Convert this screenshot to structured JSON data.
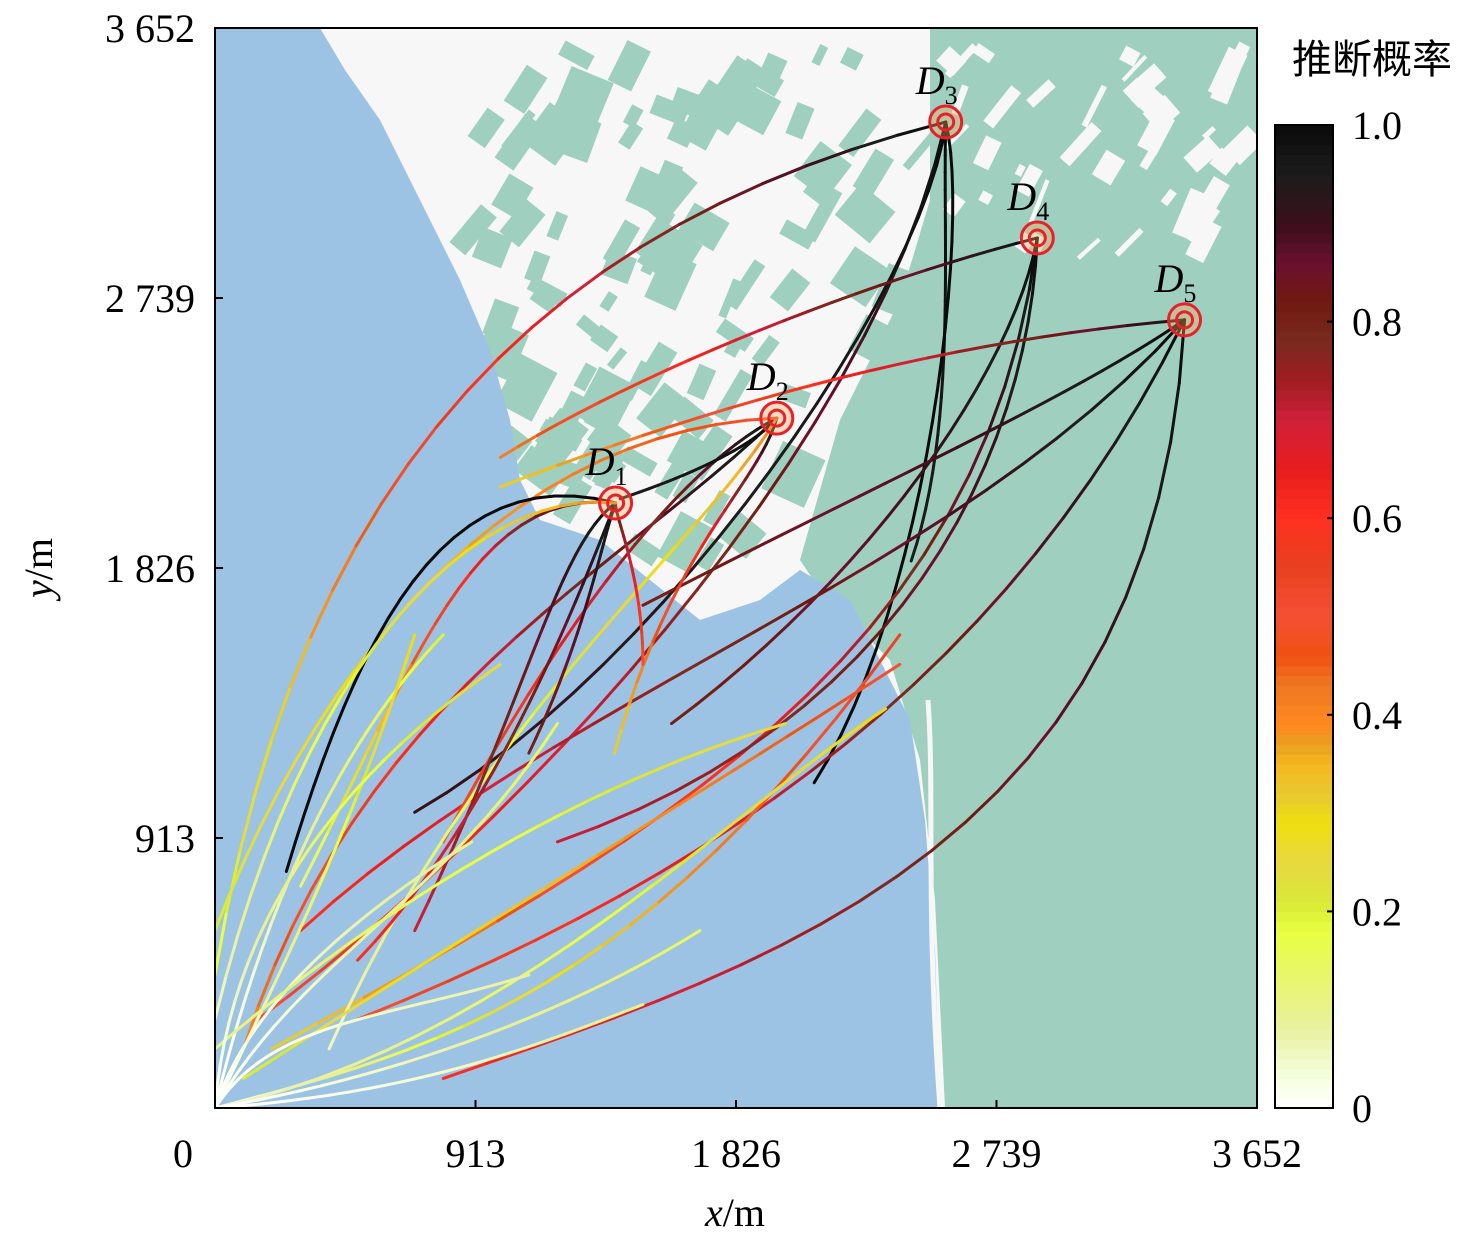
{
  "chart_data": {
    "type": "line",
    "xlabel": "x/m",
    "ylabel": "y/m",
    "xlim": [
      0,
      3652
    ],
    "ylim": [
      0,
      3652
    ],
    "xticks": [
      "0",
      "913",
      "1 826",
      "2 739",
      "3 652"
    ],
    "yticks": [
      "0",
      "913",
      "1 826",
      "2 739",
      "3 652"
    ],
    "xtick_values": [
      0,
      913,
      1826,
      2739,
      3652
    ],
    "ytick_values": [
      0,
      913,
      1826,
      2739,
      3652
    ],
    "grid": false,
    "colorbar": {
      "title": "推断概率",
      "ticks": [
        "0",
        "0.2",
        "0.4",
        "0.6",
        "0.8",
        "1.0"
      ],
      "tick_values": [
        0,
        0.2,
        0.4,
        0.6,
        0.8,
        1.0
      ],
      "range": [
        0,
        1
      ],
      "stops": [
        [
          0,
          "#ffffff"
        ],
        [
          0.03,
          "#f6ffe0"
        ],
        [
          0.08,
          "#e8f0a0"
        ],
        [
          0.13,
          "#e8f570"
        ],
        [
          0.18,
          "#e8ff40"
        ],
        [
          0.21,
          "#d8e838"
        ],
        [
          0.25,
          "#e8d840"
        ],
        [
          0.29,
          "#eee010"
        ],
        [
          0.32,
          "#e8c830"
        ],
        [
          0.35,
          "#f5b820"
        ],
        [
          0.37,
          "#e8a020"
        ],
        [
          0.39,
          "#ff8820"
        ],
        [
          0.43,
          "#ee7722"
        ],
        [
          0.46,
          "#f05010"
        ],
        [
          0.5,
          "#f55035"
        ],
        [
          0.55,
          "#e84020"
        ],
        [
          0.6,
          "#ff3020"
        ],
        [
          0.65,
          "#e81d1d"
        ],
        [
          0.7,
          "#d0203a"
        ],
        [
          0.74,
          "#a01c20"
        ],
        [
          0.78,
          "#7a2a20"
        ],
        [
          0.82,
          "#701a10"
        ],
        [
          0.86,
          "#6a1030"
        ],
        [
          0.9,
          "#3a0f1a"
        ],
        [
          0.95,
          "#1c1c1c"
        ],
        [
          1,
          "#0a0a0a"
        ]
      ]
    },
    "targets": [
      {
        "label": "D",
        "sub": "1",
        "x": 1404,
        "y": 2046
      },
      {
        "label": "D",
        "sub": "2",
        "x": 1969,
        "y": 2333
      },
      {
        "label": "D",
        "sub": "3",
        "x": 2561,
        "y": 3334
      },
      {
        "label": "D",
        "sub": "4",
        "x": 2882,
        "y": 2942
      },
      {
        "label": "D",
        "sub": "5",
        "x": 3398,
        "y": 2665
      }
    ],
    "trajectories": [
      {
        "start": [
          0,
          450
        ],
        "c1": [
          300,
          2200
        ],
        "c2": [
          1200,
          3000
        ],
        "to": 2,
        "p": [
          0.15,
          1
        ]
      },
      {
        "start": [
          150,
          300
        ],
        "c1": [
          1000,
          900
        ],
        "c2": [
          2300,
          2200
        ],
        "to": 2,
        "p": [
          0.5,
          1
        ]
      },
      {
        "start": [
          700,
          1000
        ],
        "c1": [
          1600,
          1500
        ],
        "c2": [
          2500,
          2800
        ],
        "to": 2,
        "p": [
          0.9,
          1
        ]
      },
      {
        "start": [
          2440,
          1850
        ],
        "c1": [
          2600,
          2300
        ],
        "c2": [
          2550,
          2900
        ],
        "to": 2,
        "p": [
          0.95,
          1
        ]
      },
      {
        "start": [
          2100,
          1100
        ],
        "c1": [
          2500,
          1700
        ],
        "c2": [
          2650,
          3000
        ],
        "to": 2,
        "p": [
          1,
          1
        ]
      },
      {
        "start": [
          1000,
          2200
        ],
        "c1": [
          1500,
          2500
        ],
        "c2": [
          2300,
          2800
        ],
        "to": 3,
        "p": [
          0.4,
          1
        ]
      },
      {
        "start": [
          200,
          200
        ],
        "c1": [
          1500,
          900
        ],
        "c2": [
          2700,
          1500
        ],
        "to": 3,
        "p": [
          0.3,
          1
        ]
      },
      {
        "start": [
          1600,
          1300
        ],
        "c1": [
          2300,
          1800
        ],
        "c2": [
          2800,
          2500
        ],
        "to": 3,
        "p": [
          0.8,
          1
        ]
      },
      {
        "start": [
          1200,
          900
        ],
        "c1": [
          2400,
          1300
        ],
        "c2": [
          2850,
          2200
        ],
        "to": 3,
        "p": [
          0.7,
          1
        ]
      },
      {
        "start": [
          800,
          100
        ],
        "c1": [
          2000,
          500
        ],
        "c2": [
          3300,
          900
        ],
        "to": 4,
        "p": [
          0.6,
          1
        ]
      },
      {
        "start": [
          500,
          300
        ],
        "c1": [
          1800,
          800
        ],
        "c2": [
          2800,
          1500
        ],
        "to": 4,
        "p": [
          0.5,
          1
        ]
      },
      {
        "start": [
          1000,
          2100
        ],
        "c1": [
          1800,
          2400
        ],
        "c2": [
          2600,
          2600
        ],
        "to": 4,
        "p": [
          0.3,
          0.95
        ]
      },
      {
        "start": [
          1500,
          1700
        ],
        "c1": [
          2300,
          2100
        ],
        "c2": [
          3000,
          2400
        ],
        "to": 4,
        "p": [
          0.8,
          1
        ]
      },
      {
        "start": [
          300,
          600
        ],
        "c1": [
          1200,
          1400
        ],
        "c2": [
          2600,
          1800
        ],
        "to": 4,
        "p": [
          0.6,
          1
        ]
      },
      {
        "start": [
          100,
          200
        ],
        "c1": [
          500,
          1400
        ],
        "c2": [
          1400,
          1800
        ],
        "to": 1,
        "p": [
          0.4,
          1
        ]
      },
      {
        "start": [
          800,
          900
        ],
        "c1": [
          1300,
          1800
        ],
        "c2": [
          1700,
          2200
        ],
        "to": 1,
        "p": [
          0.5,
          1
        ]
      },
      {
        "start": [
          1400,
          1200
        ],
        "c1": [
          1600,
          1900
        ],
        "c2": [
          1900,
          2100
        ],
        "to": 1,
        "p": [
          0.3,
          1
        ]
      },
      {
        "start": [
          1420,
          2060
        ],
        "c1": [
          1700,
          2150
        ],
        "c2": [
          1900,
          2250
        ],
        "to": 1,
        "p": [
          0.95,
          1
        ]
      },
      {
        "start": [
          400,
          200
        ],
        "c1": [
          900,
          1300
        ],
        "c2": [
          1700,
          1900
        ],
        "to": 1,
        "p": [
          0.05,
          0.4
        ]
      },
      {
        "start": [
          0,
          600
        ],
        "c1": [
          400,
          1600
        ],
        "c2": [
          1100,
          2300
        ],
        "to": 1,
        "p": [
          0.2,
          0.5
        ]
      },
      {
        "start": [
          250,
          800
        ],
        "c1": [
          500,
          1600
        ],
        "c2": [
          800,
          2200
        ],
        "to": 0,
        "p": [
          1,
          1
        ]
      },
      {
        "start": [
          300,
          750
        ],
        "c1": [
          700,
          1500
        ],
        "c2": [
          900,
          2100
        ],
        "to": 0,
        "p": [
          0.1,
          1
        ]
      },
      {
        "start": [
          700,
          600
        ],
        "c1": [
          1100,
          1400
        ],
        "c2": [
          1200,
          1900
        ],
        "to": 0,
        "p": [
          0.7,
          1
        ]
      },
      {
        "start": [
          1100,
          1200
        ],
        "c1": [
          1300,
          1600
        ],
        "c2": [
          1350,
          1900
        ],
        "to": 0,
        "p": [
          0.8,
          1
        ]
      },
      {
        "start": [
          500,
          500
        ],
        "c1": [
          1000,
          1000
        ],
        "c2": [
          1300,
          1800
        ],
        "to": 0,
        "p": [
          0.6,
          1
        ]
      },
      {
        "start": [
          1500,
          1500
        ],
        "c1": [
          1500,
          1800
        ],
        "c2": [
          1400,
          2000
        ],
        "to": 0,
        "p": [
          0.5,
          0.9
        ]
      },
      {
        "start": [
          0,
          300
        ],
        "c1": [
          300,
          1500
        ],
        "c2": [
          900,
          2100
        ],
        "to": 0,
        "p": [
          0.05,
          0.4
        ]
      },
      {
        "start": [
          0,
          0
        ],
        "c1": [
          300,
          500
        ],
        "c2": [
          800,
          700
        ],
        "end": [
          1200,
          1300
        ],
        "p": [
          0,
          0.15
        ]
      },
      {
        "start": [
          0,
          0
        ],
        "c1": [
          800,
          200
        ],
        "c2": [
          1500,
          400
        ],
        "end": [
          2400,
          1600
        ],
        "p": [
          0,
          0.55
        ]
      },
      {
        "start": [
          0,
          0
        ],
        "c1": [
          200,
          800
        ],
        "c2": [
          500,
          1300
        ],
        "end": [
          800,
          1600
        ],
        "p": [
          0,
          0.2
        ]
      },
      {
        "start": [
          0,
          0
        ],
        "c1": [
          1000,
          200
        ],
        "c2": [
          1800,
          1000
        ],
        "end": [
          2350,
          1350
        ],
        "p": [
          0.05,
          0.3
        ]
      },
      {
        "start": [
          0,
          0
        ],
        "c1": [
          100,
          300
        ],
        "c2": [
          400,
          600
        ],
        "end": [
          900,
          900
        ],
        "p": [
          0,
          0.1
        ]
      },
      {
        "start": [
          0,
          0
        ],
        "c1": [
          600,
          100
        ],
        "c2": [
          1200,
          300
        ],
        "end": [
          1700,
          600
        ],
        "p": [
          0,
          0.15
        ]
      },
      {
        "start": [
          0,
          0
        ],
        "c1": [
          300,
          600
        ],
        "c2": [
          500,
          1000
        ],
        "end": [
          700,
          1600
        ],
        "p": [
          0,
          0.3
        ]
      },
      {
        "start": [
          0,
          200
        ],
        "c1": [
          600,
          700
        ],
        "c2": [
          1300,
          1100
        ],
        "end": [
          2000,
          1300
        ],
        "p": [
          0.1,
          0.25
        ]
      },
      {
        "start": [
          0,
          0
        ],
        "c1": [
          50,
          600
        ],
        "c2": [
          400,
          1100
        ],
        "end": [
          1000,
          1500
        ],
        "p": [
          0,
          0.25
        ]
      },
      {
        "start": [
          100,
          100
        ],
        "c1": [
          900,
          600
        ],
        "c2": [
          1600,
          1000
        ],
        "end": [
          2400,
          1500
        ],
        "p": [
          0.2,
          0.5
        ]
      },
      {
        "start": [
          0,
          0
        ],
        "c1": [
          700,
          50
        ],
        "c2": [
          1100,
          200
        ],
        "end": [
          1500,
          350
        ],
        "p": [
          0,
          0.1
        ]
      },
      {
        "start": [
          0,
          0
        ],
        "c1": [
          200,
          300
        ],
        "c2": [
          600,
          300
        ],
        "end": [
          1100,
          450
        ],
        "p": [
          0,
          0.08
        ]
      }
    ],
    "map_colors": {
      "sea": "#9cc3e3",
      "land": "#f7f7f7",
      "vegetation": "#9fcfbf",
      "marker": "#e8202a"
    }
  }
}
